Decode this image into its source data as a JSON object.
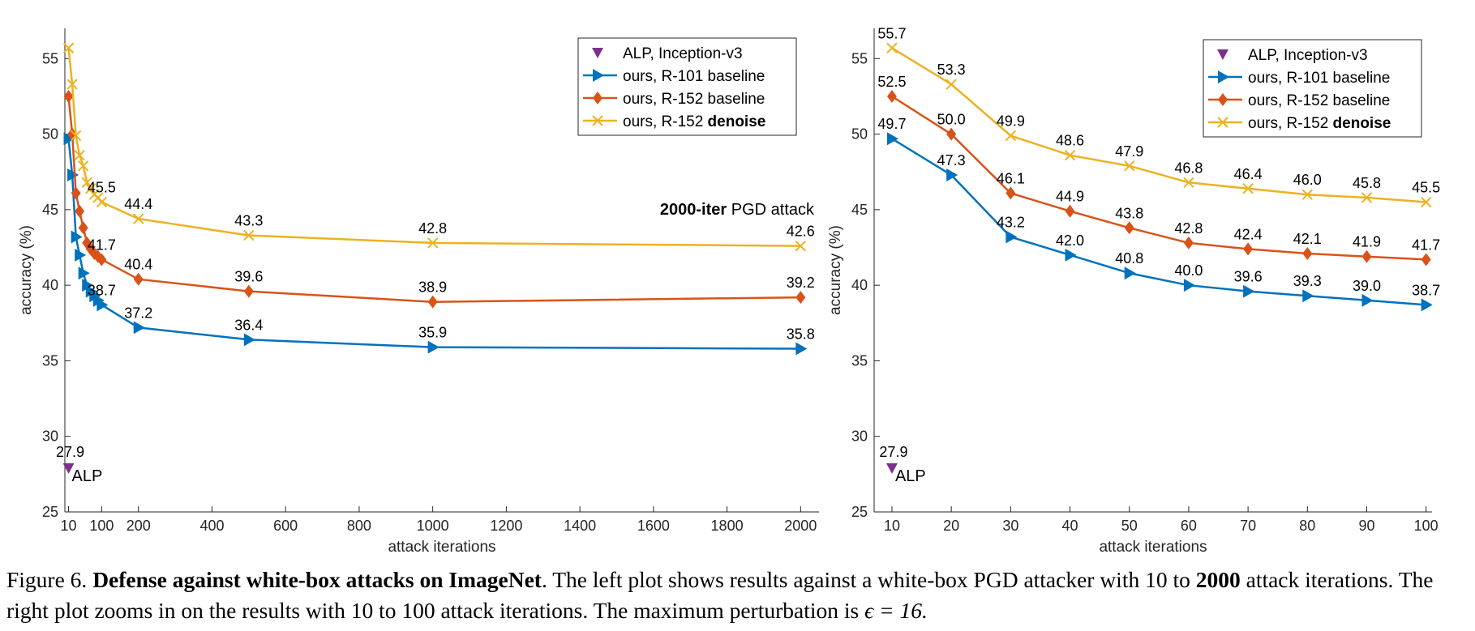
{
  "chart_data": [
    {
      "type": "line",
      "xlabel": "attack iterations",
      "ylabel": "accuracy (%)",
      "xlim": [
        0,
        2050
      ],
      "ylim": [
        25,
        57
      ],
      "xticks": [
        10,
        100,
        200,
        400,
        600,
        800,
        1000,
        1200,
        1400,
        1600,
        1800,
        2000
      ],
      "yticks": [
        25,
        30,
        35,
        40,
        45,
        50,
        55
      ],
      "annotation": {
        "bold": "2000-iter",
        "normal": " PGD attack"
      },
      "alp": {
        "x": 10,
        "y": 27.9,
        "label": "27.9",
        "name": "ALP"
      },
      "series": [
        {
          "name": "ours, R-101 baseline",
          "color": "#0072BD",
          "marker": "tri-right",
          "x": [
            10,
            20,
            30,
            40,
            50,
            60,
            70,
            80,
            90,
            100,
            200,
            500,
            1000,
            2000
          ],
          "y": [
            49.7,
            47.3,
            43.2,
            42.0,
            40.8,
            40.0,
            39.6,
            39.3,
            39.0,
            38.7,
            37.2,
            36.4,
            35.9,
            35.8
          ],
          "labels": [
            null,
            null,
            null,
            null,
            null,
            null,
            null,
            null,
            null,
            "38.7",
            "37.2",
            "36.4",
            "35.9",
            "35.8"
          ]
        },
        {
          "name": "ours, R-152 baseline",
          "color": "#D95319",
          "marker": "diamond",
          "x": [
            10,
            20,
            30,
            40,
            50,
            60,
            70,
            80,
            90,
            100,
            200,
            500,
            1000,
            2000
          ],
          "y": [
            52.5,
            50.0,
            46.1,
            44.9,
            43.8,
            42.8,
            42.4,
            42.1,
            41.9,
            41.7,
            40.4,
            39.6,
            38.9,
            39.2
          ],
          "labels": [
            null,
            null,
            null,
            null,
            null,
            null,
            null,
            null,
            null,
            "41.7",
            "40.4",
            "39.6",
            "38.9",
            "39.2"
          ]
        },
        {
          "name": "ours, R-152 denoise",
          "color": "#EDB120",
          "marker": "x",
          "x": [
            10,
            20,
            30,
            40,
            50,
            60,
            70,
            80,
            90,
            100,
            200,
            500,
            1000,
            2000
          ],
          "y": [
            55.7,
            53.3,
            49.9,
            48.6,
            47.9,
            46.8,
            46.4,
            46.0,
            45.8,
            45.5,
            44.4,
            43.3,
            42.8,
            42.6
          ],
          "labels": [
            null,
            null,
            null,
            null,
            null,
            null,
            null,
            null,
            null,
            "45.5",
            "44.4",
            "43.3",
            "42.8",
            "42.6"
          ]
        }
      ]
    },
    {
      "type": "line",
      "xlabel": "attack iterations",
      "ylabel": "accuracy (%)",
      "xlim": [
        7,
        101
      ],
      "ylim": [
        25,
        57
      ],
      "xticks": [
        10,
        20,
        30,
        40,
        50,
        60,
        70,
        80,
        90,
        100
      ],
      "yticks": [
        25,
        30,
        35,
        40,
        45,
        50,
        55
      ],
      "alp": {
        "x": 10,
        "y": 27.9,
        "label": "27.9",
        "name": "ALP"
      },
      "series": [
        {
          "name": "ours, R-101 baseline",
          "color": "#0072BD",
          "marker": "tri-right",
          "x": [
            10,
            20,
            30,
            40,
            50,
            60,
            70,
            80,
            90,
            100
          ],
          "y": [
            49.7,
            47.3,
            43.2,
            42.0,
            40.8,
            40.0,
            39.6,
            39.3,
            39.0,
            38.7
          ],
          "labels": [
            "49.7",
            "47.3",
            "43.2",
            "42.0",
            "40.8",
            "40.0",
            "39.6",
            "39.3",
            "39.0",
            "38.7"
          ]
        },
        {
          "name": "ours, R-152 baseline",
          "color": "#D95319",
          "marker": "diamond",
          "x": [
            10,
            20,
            30,
            40,
            50,
            60,
            70,
            80,
            90,
            100
          ],
          "y": [
            52.5,
            50.0,
            46.1,
            44.9,
            43.8,
            42.8,
            42.4,
            42.1,
            41.9,
            41.7
          ],
          "labels": [
            "52.5",
            "50.0",
            "46.1",
            "44.9",
            "43.8",
            "42.8",
            "42.4",
            "42.1",
            "41.9",
            "41.7"
          ]
        },
        {
          "name": "ours, R-152 denoise",
          "color": "#EDB120",
          "marker": "x",
          "x": [
            10,
            20,
            30,
            40,
            50,
            60,
            70,
            80,
            90,
            100
          ],
          "y": [
            55.7,
            53.3,
            49.9,
            48.6,
            47.9,
            46.8,
            46.4,
            46.0,
            45.8,
            45.5
          ],
          "labels": [
            "55.7",
            "53.3",
            "49.9",
            "48.6",
            "47.9",
            "46.8",
            "46.4",
            "46.0",
            "45.8",
            "45.5"
          ]
        }
      ]
    }
  ],
  "legend": {
    "alp": {
      "name": "ALP, Inception-v3",
      "color": "#7E2F8E"
    },
    "items": [
      {
        "prefix": "ours, R-101 ",
        "suffix": "baseline",
        "bold": false
      },
      {
        "prefix": "ours, R-152 ",
        "suffix": "baseline",
        "bold": false
      },
      {
        "prefix": "ours, R-152 ",
        "suffix": "denoise",
        "bold": true
      }
    ]
  },
  "caption": {
    "fig": "Figure 6.",
    "title": "Defense against white-box attacks on ImageNet",
    "text1": ". The left plot shows results against a white-box PGD attacker with 10 to ",
    "bold2": "2000",
    "text2": " attack iterations. The right plot zooms in on the results with 10 to 100 attack iterations. The maximum perturbation is ",
    "eps": "ϵ = 16."
  }
}
